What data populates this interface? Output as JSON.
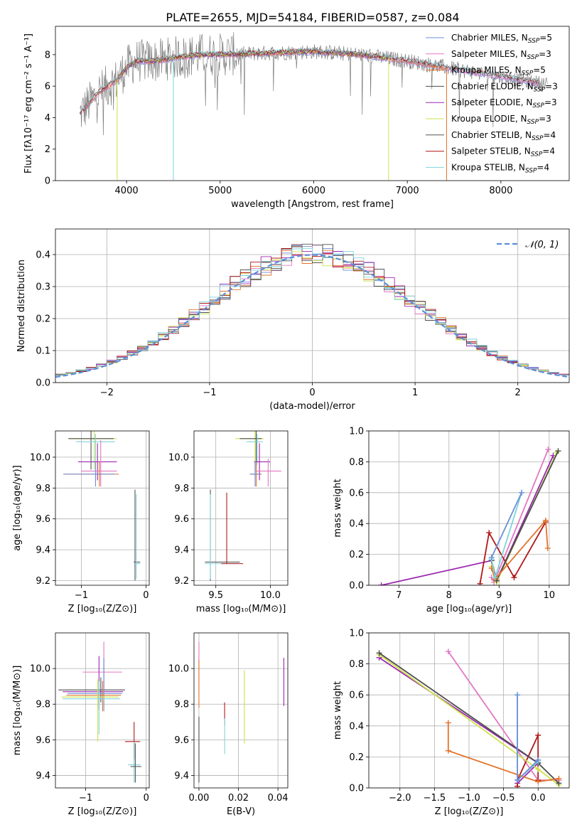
{
  "figure_title": "PLATE=2655, MJD=54184, FIBERID=0587, z=0.084",
  "colors": {
    "chabrier_miles": "#6a8fd8",
    "salpeter_miles": "#e377c2",
    "kroupa_miles": "#e2732a",
    "chabrier_elodie": "#4d4d4d",
    "salpeter_elodie": "#9c27b0",
    "kroupa_elodie": "#cde34a",
    "chabrier_stelib": "#555555",
    "salpeter_stelib": "#b01818",
    "kroupa_stelib": "#7fd3dd",
    "data": "#7f7f7f",
    "gaussian": "#5b8fd6"
  },
  "chart_data": [
    {
      "id": "spectrum",
      "type": "line",
      "xlabel": "wavelength [Angstrom, rest frame]",
      "ylabel": "Flux [fλ10⁻¹⁷ erg cm⁻² s⁻¹ A⁻¹]",
      "xlim": [
        3240,
        8730
      ],
      "ylim": [
        0,
        9.8
      ],
      "xticks": [
        4000,
        5000,
        6000,
        7000,
        8000
      ],
      "yticks": [
        0,
        2,
        4,
        6,
        8
      ],
      "continuum": {
        "x": [
          3500,
          3700,
          3900,
          4000,
          4100,
          4300,
          4500,
          4800,
          5000,
          5500,
          6000,
          6500,
          7000,
          7500,
          8000,
          8500
        ],
        "y": [
          4.2,
          5.6,
          6.4,
          7.2,
          7.6,
          7.6,
          7.8,
          8.0,
          8.0,
          8.1,
          8.2,
          8.0,
          7.6,
          7.1,
          6.6,
          6.1
        ]
      },
      "legend": [
        {
          "label": "Chabrier MILES, N",
          "sub": "SSP",
          "suffix": "=5",
          "color_key": "chabrier_miles"
        },
        {
          "label": "Salpeter MILES, N",
          "sub": "SSP",
          "suffix": "=3",
          "color_key": "salpeter_miles"
        },
        {
          "label": "Kroupa MILES, N",
          "sub": "SSP",
          "suffix": "=5",
          "color_key": "kroupa_miles"
        },
        {
          "label": "Chabrier ELODIE, N",
          "sub": "SSP",
          "suffix": "=3",
          "color_key": "chabrier_elodie"
        },
        {
          "label": "Salpeter ELODIE, N",
          "sub": "SSP",
          "suffix": "=3",
          "color_key": "salpeter_elodie"
        },
        {
          "label": "Kroupa ELODIE, N",
          "sub": "SSP",
          "suffix": "=3",
          "color_key": "kroupa_elodie"
        },
        {
          "label": "Chabrier STELIB, N",
          "sub": "SSP",
          "suffix": "=4",
          "color_key": "chabrier_stelib"
        },
        {
          "label": "Salpeter STELIB, N",
          "sub": "SSP",
          "suffix": "=4",
          "color_key": "salpeter_stelib"
        },
        {
          "label": "Kroupa STELIB, N",
          "sub": "SSP",
          "suffix": "=4",
          "color_key": "kroupa_stelib"
        }
      ]
    },
    {
      "id": "residuals",
      "type": "histogram",
      "xlabel": "(data-model)/error",
      "ylabel": "Normed distribution",
      "xlim": [
        -2.5,
        2.5
      ],
      "ylim": [
        0,
        0.48
      ],
      "xticks": [
        -2,
        -1,
        0,
        1,
        2
      ],
      "yticks": [
        0.0,
        0.1,
        0.2,
        0.3,
        0.4
      ],
      "bin_width": 0.1,
      "legend": [
        {
          "label": "𝒩(0, 1)",
          "color_key": "gaussian"
        }
      ]
    },
    {
      "id": "age_vs_Z",
      "type": "errorbar",
      "xlabel": "Z [log₁₀(Z/Z⊙)]",
      "ylabel": "age  [log₁₀(age/yr)]",
      "xlim": [
        -1.4,
        0.05
      ],
      "ylim": [
        9.17,
        10.17
      ],
      "xticks": [
        -1,
        0
      ],
      "yticks": [
        9.2,
        9.4,
        9.6,
        9.8,
        10.0
      ],
      "points": [
        {
          "x": -0.8,
          "y": 10.12,
          "xerr": [
            0.4,
            0.35
          ],
          "yerr": [
            0.2,
            0.05
          ],
          "color_key": "kroupa_elodie"
        },
        {
          "x": -0.85,
          "y": 10.12,
          "xerr": [
            0.35,
            0.35
          ],
          "yerr": [
            0.2,
            0.05
          ],
          "color_key": "chabrier_elodie"
        },
        {
          "x": -0.78,
          "y": 10.1,
          "xerr": [
            0.3,
            0.3
          ],
          "yerr": [
            0.15,
            0.05
          ],
          "color_key": "kroupa_stelib"
        },
        {
          "x": -0.75,
          "y": 9.97,
          "xerr": [
            0.3,
            0.3
          ],
          "yerr": [
            0.12,
            0.12
          ],
          "color_key": "salpeter_elodie"
        },
        {
          "x": -0.7,
          "y": 9.91,
          "xerr": [
            0.3,
            0.25
          ],
          "yerr": [
            0.1,
            0.2
          ],
          "color_key": "salpeter_miles"
        },
        {
          "x": -0.72,
          "y": 9.89,
          "xerr": [
            0.55,
            0.3
          ],
          "yerr": [
            0.08,
            0.08
          ],
          "color_key": "kroupa_miles"
        },
        {
          "x": -0.78,
          "y": 9.89,
          "xerr": [
            0.5,
            0.3
          ],
          "yerr": [
            0.08,
            0.08
          ],
          "color_key": "chabrier_miles"
        },
        {
          "x": -0.17,
          "y": 9.32,
          "xerr": [
            0.02,
            0.08
          ],
          "yerr": [
            0.12,
            0.47
          ],
          "color_key": "chabrier_stelib"
        },
        {
          "x": -0.15,
          "y": 9.31,
          "xerr": [
            0.02,
            0.06
          ],
          "yerr": [
            0.1,
            0.45
          ],
          "color_key": "kroupa_stelib"
        }
      ]
    },
    {
      "id": "age_vs_mass",
      "type": "errorbar",
      "xlabel": "mass [log₁₀(M/M⊙)]",
      "ylabel": "",
      "xlim": [
        9.3,
        10.16
      ],
      "ylim": [
        9.17,
        10.17
      ],
      "xticks": [
        9.5,
        10.0
      ],
      "yticks": [
        9.2,
        9.4,
        9.6,
        9.8,
        10.0
      ],
      "points": [
        {
          "x": 9.86,
          "y": 10.12,
          "xerr": [
            0.18,
            0.08
          ],
          "yerr": [
            0.2,
            0.05
          ],
          "color_key": "kroupa_elodie"
        },
        {
          "x": 9.87,
          "y": 10.12,
          "xerr": [
            0.15,
            0.05
          ],
          "yerr": [
            0.2,
            0.05
          ],
          "color_key": "chabrier_elodie"
        },
        {
          "x": 9.88,
          "y": 10.1,
          "xerr": [
            0.1,
            0.05
          ],
          "yerr": [
            0.15,
            0.05
          ],
          "color_key": "kroupa_stelib"
        },
        {
          "x": 9.9,
          "y": 9.97,
          "xerr": [
            0.05,
            0.1
          ],
          "yerr": [
            0.12,
            0.12
          ],
          "color_key": "salpeter_elodie"
        },
        {
          "x": 9.98,
          "y": 9.91,
          "xerr": [
            0.12,
            0.12
          ],
          "yerr": [
            0.1,
            0.08
          ],
          "color_key": "salpeter_miles"
        },
        {
          "x": 9.87,
          "y": 9.89,
          "xerr": [
            0.05,
            0.05
          ],
          "yerr": [
            0.08,
            0.08
          ],
          "color_key": "kroupa_miles"
        },
        {
          "x": 9.86,
          "y": 9.89,
          "xerr": [
            0.05,
            0.05
          ],
          "yerr": [
            0.08,
            0.08
          ],
          "color_key": "chabrier_miles"
        },
        {
          "x": 9.45,
          "y": 9.32,
          "xerr": [
            0.05,
            0.27
          ],
          "yerr": [
            0.12,
            0.47
          ],
          "color_key": "chabrier_stelib"
        },
        {
          "x": 9.45,
          "y": 9.31,
          "xerr": [
            0.05,
            0.25
          ],
          "yerr": [
            0.1,
            0.45
          ],
          "color_key": "kroupa_stelib"
        },
        {
          "x": 9.6,
          "y": 9.31,
          "xerr": [
            0.05,
            0.15
          ],
          "yerr": [
            0.0,
            0.46
          ],
          "color_key": "salpeter_stelib"
        }
      ]
    },
    {
      "id": "weight_vs_age",
      "type": "line",
      "xlabel": "age  [log₁₀(age/yr)]",
      "ylabel": "mass weight",
      "xlim": [
        6.4,
        10.4
      ],
      "ylim": [
        0,
        1.0
      ],
      "xticks": [
        7,
        8,
        9,
        10
      ],
      "yticks": [
        0.0,
        0.2,
        0.4,
        0.6,
        0.8,
        1.0
      ],
      "series": [
        {
          "color_key": "salpeter_elodie",
          "points": [
            [
              6.65,
              0.0
            ],
            [
              8.85,
              0.16
            ],
            [
              8.95,
              0.03
            ],
            [
              10.08,
              0.84
            ]
          ]
        },
        {
          "color_key": "salpeter_miles",
          "points": [
            [
              8.85,
              0.05
            ],
            [
              8.9,
              0.02
            ],
            [
              9.98,
              0.88
            ]
          ]
        },
        {
          "color_key": "salpeter_stelib",
          "points": [
            [
              8.62,
              0.01
            ],
            [
              8.8,
              0.34
            ],
            [
              9.3,
              0.05
            ],
            [
              9.93,
              0.41
            ]
          ]
        },
        {
          "color_key": "kroupa_elodie",
          "points": [
            [
              8.85,
              0.12
            ],
            [
              8.95,
              0.02
            ],
            [
              10.15,
              0.86
            ]
          ]
        },
        {
          "color_key": "chabrier_elodie",
          "points": [
            [
              8.85,
              0.16
            ],
            [
              8.95,
              0.03
            ],
            [
              10.18,
              0.87
            ]
          ]
        },
        {
          "color_key": "kroupa_miles",
          "points": [
            [
              8.85,
              0.11
            ],
            [
              8.92,
              0.04
            ],
            [
              9.93,
              0.42
            ],
            [
              9.97,
              0.24
            ]
          ]
        },
        {
          "color_key": "kroupa_stelib",
          "points": [
            [
              8.85,
              0.17
            ],
            [
              8.92,
              0.05
            ],
            [
              9.45,
              0.6
            ]
          ]
        },
        {
          "color_key": "chabrier_miles",
          "points": [
            [
              8.85,
              0.18
            ],
            [
              9.45,
              0.6
            ]
          ]
        }
      ]
    },
    {
      "id": "mass_vs_Z",
      "type": "errorbar",
      "xlabel": "Z [log₁₀(Z/Z⊙)]",
      "ylabel": "mass [log₁₀(M/M⊙)]",
      "xlim": [
        -1.5,
        0.05
      ],
      "ylim": [
        9.33,
        10.2
      ],
      "xticks": [
        -1,
        0
      ],
      "yticks": [
        9.4,
        9.6,
        9.8,
        10.0
      ],
      "points": [
        {
          "x": -0.7,
          "y": 9.98,
          "xerr": [
            0.35,
            0.3
          ],
          "yerr": [
            0.1,
            0.17
          ],
          "color_key": "salpeter_miles"
        },
        {
          "x": -0.75,
          "y": 9.88,
          "xerr": [
            0.7,
            0.4
          ],
          "yerr": [
            0.07,
            0.07
          ],
          "color_key": "chabrier_elodie"
        },
        {
          "x": -0.78,
          "y": 9.87,
          "xerr": [
            0.6,
            0.4
          ],
          "yerr": [
            0.1,
            0.2
          ],
          "color_key": "salpeter_elodie"
        },
        {
          "x": -0.7,
          "y": 9.86,
          "xerr": [
            0.6,
            0.3
          ],
          "yerr": [
            0.1,
            0.2
          ],
          "color_key": "chabrier_miles"
        },
        {
          "x": -0.72,
          "y": 9.85,
          "xerr": [
            0.6,
            0.3
          ],
          "yerr": [
            0.09,
            0.08
          ],
          "color_key": "kroupa_miles"
        },
        {
          "x": -0.8,
          "y": 9.84,
          "xerr": [
            0.6,
            0.35
          ],
          "yerr": [
            0.25,
            0.1
          ],
          "color_key": "kroupa_elodie"
        },
        {
          "x": -0.78,
          "y": 9.83,
          "xerr": [
            0.6,
            0.35
          ],
          "yerr": [
            0.2,
            0.1
          ],
          "color_key": "kroupa_stelib"
        },
        {
          "x": -0.2,
          "y": 9.59,
          "xerr": [
            0.15,
            0.1
          ],
          "yerr": [
            0.1,
            0.11
          ],
          "color_key": "salpeter_stelib"
        },
        {
          "x": -0.2,
          "y": 9.46,
          "xerr": [
            0.1,
            0.1
          ],
          "yerr": [
            0.1,
            0.13
          ],
          "color_key": "kroupa_stelib"
        },
        {
          "x": -0.18,
          "y": 9.45,
          "xerr": [
            0.08,
            0.1
          ],
          "yerr": [
            0.09,
            0.13
          ],
          "color_key": "chabrier_stelib"
        }
      ]
    },
    {
      "id": "mass_vs_ebv",
      "type": "errorbar",
      "xlabel": "E(B-V)",
      "ylabel": "",
      "xlim": [
        -0.0025,
        0.045
      ],
      "ylim": [
        9.33,
        10.2
      ],
      "xticks": [
        0.0,
        0.02,
        0.04
      ],
      "yticks": [
        9.4,
        9.6,
        9.8,
        10.0
      ],
      "points": [
        {
          "x": 0.0,
          "y": 9.98,
          "xerr": [
            0,
            0
          ],
          "yerr": [
            0.1,
            0.17
          ],
          "color_key": "salpeter_miles"
        },
        {
          "x": 0.0,
          "y": 9.88,
          "xerr": [
            0,
            0
          ],
          "yerr": [
            0.1,
            0.17
          ],
          "color_key": "kroupa_miles"
        },
        {
          "x": 0.0,
          "y": 9.55,
          "xerr": [
            0,
            0
          ],
          "yerr": [
            0.19,
            0.18
          ],
          "color_key": "chabrier_elodie"
        },
        {
          "x": 0.013,
          "y": 9.73,
          "xerr": [
            0,
            0
          ],
          "yerr": [
            0.05,
            0.08
          ],
          "color_key": "salpeter_stelib"
        },
        {
          "x": 0.013,
          "y": 9.62,
          "xerr": [
            0,
            0
          ],
          "yerr": [
            0.1,
            0.1
          ],
          "color_key": "kroupa_stelib"
        },
        {
          "x": 0.023,
          "y": 9.78,
          "xerr": [
            0,
            0
          ],
          "yerr": [
            0.2,
            0.21
          ],
          "color_key": "kroupa_elodie"
        },
        {
          "x": 0.043,
          "y": 9.92,
          "xerr": [
            0,
            0
          ],
          "yerr": [
            0.13,
            0.14
          ],
          "color_key": "salpeter_elodie"
        }
      ]
    },
    {
      "id": "weight_vs_Z",
      "type": "line",
      "xlabel": "Z [log₁₀(Z/Z⊙)]",
      "ylabel": "mass weight",
      "xlim": [
        -2.45,
        0.45
      ],
      "ylim": [
        0,
        1.0
      ],
      "xticks": [
        -2.0,
        -1.5,
        -1.0,
        -0.5,
        0.0
      ],
      "yticks": [
        0.0,
        0.2,
        0.4,
        0.6,
        0.8,
        1.0
      ],
      "series": [
        {
          "color_key": "salpeter_elodie",
          "points": [
            [
              -2.3,
              0.84
            ],
            [
              0.0,
              0.16
            ],
            [
              -0.3,
              0.03
            ]
          ]
        },
        {
          "color_key": "salpeter_miles",
          "points": [
            [
              -1.3,
              0.88
            ],
            [
              0.0,
              0.05
            ],
            [
              0.3,
              0.05
            ]
          ]
        },
        {
          "color_key": "salpeter_stelib",
          "points": [
            [
              -0.3,
              0.01
            ],
            [
              -0.3,
              0.05
            ],
            [
              0.0,
              0.34
            ],
            [
              0.0,
              0.05
            ]
          ]
        },
        {
          "color_key": "kroupa_elodie",
          "points": [
            [
              -2.3,
              0.86
            ],
            [
              0.0,
              0.12
            ],
            [
              0.3,
              0.02
            ]
          ]
        },
        {
          "color_key": "chabrier_elodie",
          "points": [
            [
              -2.3,
              0.87
            ],
            [
              0.0,
              0.16
            ],
            [
              0.3,
              0.03
            ]
          ]
        },
        {
          "color_key": "kroupa_miles",
          "points": [
            [
              -1.3,
              0.42
            ],
            [
              -1.3,
              0.24
            ],
            [
              0.0,
              0.04
            ],
            [
              0.3,
              0.06
            ]
          ]
        },
        {
          "color_key": "kroupa_stelib",
          "points": [
            [
              -0.3,
              0.6
            ],
            [
              -0.3,
              0.05
            ],
            [
              0.0,
              0.17
            ]
          ]
        },
        {
          "color_key": "chabrier_miles",
          "points": [
            [
              -0.3,
              0.6
            ],
            [
              -0.3,
              0.05
            ],
            [
              0.0,
              0.18
            ]
          ]
        }
      ]
    }
  ]
}
